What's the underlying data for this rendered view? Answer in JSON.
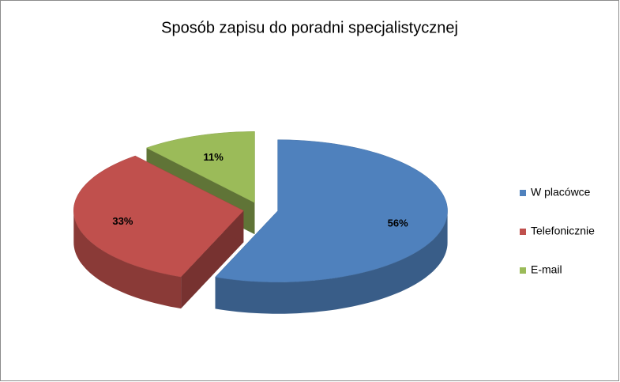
{
  "chart_data": {
    "type": "pie3d",
    "title": "Sposób zapisu do poradni specjalistycznej",
    "categories": [
      "W placówce",
      "Telefonicznie",
      "E-mail"
    ],
    "values": [
      56,
      33,
      11
    ],
    "value_labels": [
      "56%",
      "33%",
      "11%"
    ],
    "colors": [
      "#4f81bd",
      "#c0504d",
      "#9bbb59"
    ],
    "legend": "right"
  }
}
